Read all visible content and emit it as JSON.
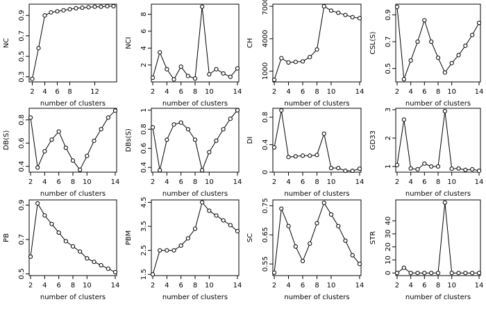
{
  "chart_data": [
    {
      "type": "line",
      "ylabel": "NC",
      "xlabel": "number of clusters",
      "x": [
        2,
        3,
        4,
        5,
        6,
        7,
        8,
        9,
        10,
        11,
        12,
        13,
        14,
        15
      ],
      "values": [
        0.28,
        0.58,
        0.9,
        0.93,
        0.94,
        0.95,
        0.96,
        0.97,
        0.975,
        0.98,
        0.985,
        0.985,
        0.99,
        0.99
      ],
      "xticks": [
        2,
        4,
        6,
        8,
        12
      ],
      "yticks": [
        0.3,
        0.5,
        0.7,
        0.9
      ],
      "xlim": [
        1.5,
        15.5
      ],
      "ylim": [
        0.25,
        1.01
      ]
    },
    {
      "type": "line",
      "ylabel": "NCI",
      "xlabel": "number of clusters",
      "x": [
        2,
        3,
        4,
        5,
        6,
        7,
        8,
        9,
        10,
        11,
        12,
        13,
        14
      ],
      "values": [
        0.5,
        3.5,
        1.5,
        0.3,
        1.8,
        0.7,
        0.4,
        8.9,
        0.9,
        1.5,
        1.0,
        0.6,
        1.6
      ],
      "xticks": [
        2,
        4,
        6,
        8,
        10,
        14
      ],
      "yticks": [
        2,
        4,
        6,
        8
      ],
      "xlim": [
        1.8,
        14.2
      ],
      "ylim": [
        0,
        9.2
      ]
    },
    {
      "type": "line",
      "ylabel": "CH",
      "xlabel": "number of clusters",
      "x": [
        2,
        3,
        4,
        5,
        6,
        7,
        8,
        9,
        10,
        11,
        12,
        13,
        14
      ],
      "values": [
        200,
        2200,
        1800,
        1850,
        1900,
        2300,
        3000,
        7000,
        6600,
        6400,
        6200,
        6000,
        5900
      ],
      "xticks": [
        2,
        4,
        6,
        8,
        10,
        14
      ],
      "yticks": [
        1000,
        4000,
        7000
      ],
      "xlim": [
        1.8,
        14.2
      ],
      "ylim": [
        0,
        7200
      ]
    },
    {
      "type": "line",
      "ylabel": "CSL(S)",
      "xlabel": "number of clusters",
      "x": [
        2,
        3,
        4,
        5,
        6,
        7,
        8,
        9,
        10,
        11,
        12,
        13,
        14
      ],
      "values": [
        0.96,
        0.42,
        0.56,
        0.7,
        0.86,
        0.7,
        0.58,
        0.47,
        0.54,
        0.6,
        0.67,
        0.75,
        0.84
      ],
      "xticks": [
        2,
        4,
        6,
        8,
        10,
        14
      ],
      "yticks": [
        0.5,
        0.7,
        0.9
      ],
      "xlim": [
        1.8,
        14.2
      ],
      "ylim": [
        0.4,
        0.98
      ]
    },
    {
      "type": "line",
      "ylabel": "DB(S)",
      "xlabel": "number of clusters",
      "x": [
        2,
        3,
        4,
        5,
        6,
        7,
        8,
        9,
        10,
        11,
        12,
        13,
        14
      ],
      "values": [
        0.82,
        0.39,
        0.53,
        0.63,
        0.7,
        0.56,
        0.45,
        0.37,
        0.49,
        0.62,
        0.72,
        0.82,
        0.88
      ],
      "xticks": [
        2,
        4,
        6,
        8,
        10,
        14
      ],
      "yticks": [
        0.4,
        0.6,
        0.8
      ],
      "xlim": [
        1.8,
        14.2
      ],
      "ylim": [
        0.35,
        0.9
      ]
    },
    {
      "type": "line",
      "ylabel": "DBs(S)",
      "xlabel": "number of clusters",
      "x": [
        2,
        3,
        4,
        5,
        6,
        7,
        8,
        9,
        10,
        11,
        12,
        13,
        14
      ],
      "values": [
        0.82,
        0.37,
        0.69,
        0.85,
        0.87,
        0.8,
        0.69,
        0.37,
        0.56,
        0.68,
        0.8,
        0.91,
        1.0
      ],
      "xticks": [
        2,
        4,
        6,
        8,
        10,
        14
      ],
      "yticks": [
        0.4,
        0.6,
        0.8,
        1.0
      ],
      "xlim": [
        1.8,
        14.2
      ],
      "ylim": [
        0.35,
        1.02
      ]
    },
    {
      "type": "line",
      "ylabel": "DI",
      "xlabel": "number of clusters",
      "x": [
        2,
        3,
        4,
        5,
        6,
        7,
        8,
        9,
        10,
        11,
        12,
        13,
        14
      ],
      "values": [
        0.36,
        0.9,
        0.22,
        0.23,
        0.24,
        0.24,
        0.25,
        0.56,
        0.06,
        0.06,
        0.02,
        0.02,
        0.05
      ],
      "xticks": [
        2,
        4,
        6,
        8,
        10,
        14
      ],
      "yticks": [
        0.0,
        0.4,
        0.8
      ],
      "xlim": [
        1.8,
        14.2
      ],
      "ylim": [
        0,
        0.93
      ]
    },
    {
      "type": "line",
      "ylabel": "GD33",
      "xlabel": "number of clusters",
      "x": [
        2,
        3,
        4,
        5,
        6,
        7,
        8,
        9,
        10,
        11,
        12,
        13,
        14
      ],
      "values": [
        1.05,
        2.65,
        0.93,
        0.9,
        1.1,
        1.0,
        1.0,
        2.95,
        0.92,
        0.93,
        0.88,
        0.9,
        0.85
      ],
      "xticks": [
        2,
        4,
        6,
        8,
        10,
        14
      ],
      "yticks": [
        1.0,
        2.0,
        3.0
      ],
      "xlim": [
        1.8,
        14.2
      ],
      "ylim": [
        0.8,
        3.05
      ]
    },
    {
      "type": "line",
      "ylabel": "PB",
      "xlabel": "number of clusters",
      "x": [
        2,
        3,
        4,
        5,
        6,
        7,
        8,
        9,
        10,
        11,
        12,
        13,
        14
      ],
      "values": [
        0.6,
        0.91,
        0.84,
        0.79,
        0.74,
        0.69,
        0.66,
        0.63,
        0.59,
        0.57,
        0.55,
        0.53,
        0.51
      ],
      "xticks": [
        2,
        4,
        6,
        8,
        10,
        14
      ],
      "yticks": [
        0.5,
        0.7,
        0.9
      ],
      "xlim": [
        1.8,
        14.2
      ],
      "ylim": [
        0.49,
        0.93
      ]
    },
    {
      "type": "line",
      "ylabel": "PBM",
      "xlabel": "number of clusters",
      "x": [
        2,
        3,
        4,
        5,
        6,
        7,
        8,
        9,
        10,
        11,
        12,
        13,
        14
      ],
      "values": [
        1.5,
        2.5,
        2.5,
        2.5,
        2.7,
        3.0,
        3.4,
        4.5,
        4.15,
        3.95,
        3.75,
        3.55,
        3.3
      ],
      "xticks": [
        2,
        4,
        6,
        8,
        10,
        14
      ],
      "yticks": [
        1.5,
        2.5,
        3.5,
        4.5
      ],
      "xlim": [
        1.8,
        14.2
      ],
      "ylim": [
        1.45,
        4.6
      ]
    },
    {
      "type": "line",
      "ylabel": "SC",
      "xlabel": "number of clusters",
      "x": [
        2,
        3,
        4,
        5,
        6,
        7,
        8,
        9,
        10,
        11,
        12,
        13,
        14
      ],
      "values": [
        0.52,
        0.74,
        0.68,
        0.61,
        0.56,
        0.62,
        0.69,
        0.76,
        0.72,
        0.68,
        0.63,
        0.58,
        0.55
      ],
      "xticks": [
        2,
        4,
        6,
        8,
        10,
        14
      ],
      "yticks": [
        0.55,
        0.65,
        0.75
      ],
      "xlim": [
        1.8,
        14.2
      ],
      "ylim": [
        0.51,
        0.77
      ]
    },
    {
      "type": "line",
      "ylabel": "STR",
      "xlabel": "number of clusters",
      "x": [
        2,
        3,
        4,
        5,
        6,
        7,
        8,
        9,
        10,
        11,
        12,
        13,
        14
      ],
      "values": [
        0,
        4,
        0,
        0,
        0,
        0,
        0,
        54,
        0,
        0,
        0,
        0,
        0
      ],
      "xticks": [
        2,
        4,
        6,
        8,
        10,
        14
      ],
      "yticks": [
        0,
        10,
        20,
        30,
        40
      ],
      "xlim": [
        1.8,
        14.2
      ],
      "ylim": [
        -2,
        56
      ]
    }
  ]
}
